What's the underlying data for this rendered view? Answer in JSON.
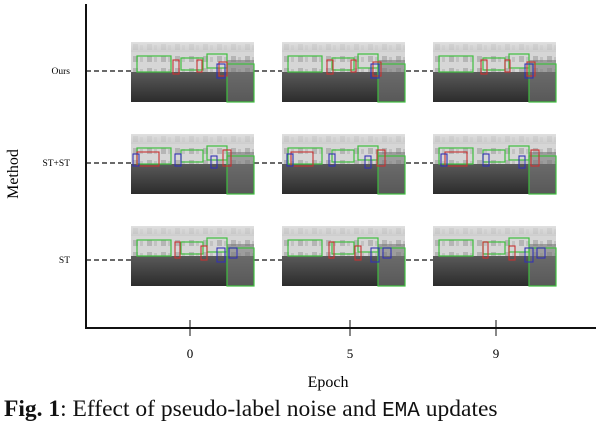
{
  "figure": {
    "y_axis_label": "Method",
    "x_axis_label": "Epoch",
    "rows": [
      {
        "label": "Ours"
      },
      {
        "label": "ST+ST"
      },
      {
        "label": "ST"
      }
    ],
    "columns": [
      {
        "label": "0"
      },
      {
        "label": "5"
      },
      {
        "label": "9"
      }
    ]
  },
  "caption": {
    "label": "Fig. 1",
    "separator": ": ",
    "text_before": "Effect of pseudo-label noise and ",
    "mono_term": "EMA",
    "text_after": " updates"
  },
  "colors": {
    "axis": "#111111",
    "gt_box": "#3fbf3f",
    "pseudo_box_red": "#c83232",
    "pseudo_box_blue": "#3232b4"
  }
}
